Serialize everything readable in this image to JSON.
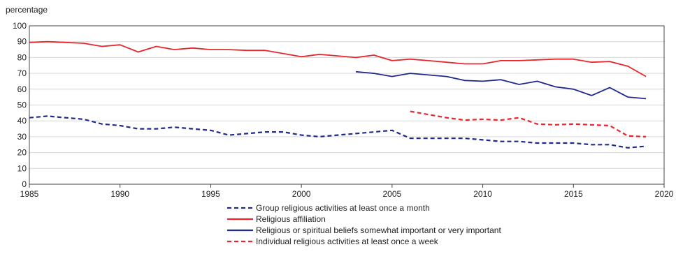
{
  "chart_data": {
    "type": "line",
    "ylabel": "percentage",
    "xlim": [
      1985,
      2020
    ],
    "ylim": [
      0,
      100
    ],
    "x_ticks": [
      "1985",
      "1990",
      "1995",
      "2000",
      "2005",
      "2010",
      "2015",
      "2020"
    ],
    "y_ticks": [
      "0",
      "10",
      "20",
      "30",
      "40",
      "50",
      "60",
      "70",
      "80",
      "90",
      "100"
    ],
    "grid": "horizontal",
    "legend_position": "bottom",
    "series": [
      {
        "name": "Group religious activities at least once a month",
        "color": "#1f2a8c",
        "dash": "dashed",
        "points": [
          [
            1985,
            42
          ],
          [
            1986,
            43
          ],
          [
            1987,
            42
          ],
          [
            1988,
            41
          ],
          [
            1989,
            38
          ],
          [
            1990,
            37
          ],
          [
            1991,
            35
          ],
          [
            1992,
            35
          ],
          [
            1993,
            36
          ],
          [
            1994,
            35
          ],
          [
            1995,
            34
          ],
          [
            1996,
            31
          ],
          [
            1997,
            32
          ],
          [
            1998,
            33
          ],
          [
            1999,
            33
          ],
          [
            2000,
            31
          ],
          [
            2001,
            30
          ],
          [
            2002,
            31
          ],
          [
            2003,
            32
          ],
          [
            2004,
            33
          ],
          [
            2005,
            34
          ],
          [
            2006,
            29
          ],
          [
            2007,
            29
          ],
          [
            2008,
            29
          ],
          [
            2009,
            29
          ],
          [
            2010,
            28
          ],
          [
            2011,
            27
          ],
          [
            2012,
            27
          ],
          [
            2013,
            26
          ],
          [
            2014,
            26
          ],
          [
            2015,
            26
          ],
          [
            2016,
            25
          ],
          [
            2017,
            25
          ],
          [
            2018,
            23
          ],
          [
            2019,
            24
          ]
        ]
      },
      {
        "name": "Religious affiliation",
        "color": "#e8262b",
        "dash": "solid",
        "points": [
          [
            1985,
            89.5
          ],
          [
            1986,
            90
          ],
          [
            1987,
            89.5
          ],
          [
            1988,
            89
          ],
          [
            1989,
            87
          ],
          [
            1990,
            88
          ],
          [
            1991,
            83.5
          ],
          [
            1992,
            87
          ],
          [
            1993,
            85
          ],
          [
            1994,
            86
          ],
          [
            1995,
            85
          ],
          [
            1996,
            85
          ],
          [
            1997,
            84.5
          ],
          [
            1998,
            84.5
          ],
          [
            1999,
            82.5
          ],
          [
            2000,
            80.5
          ],
          [
            2001,
            82
          ],
          [
            2002,
            81
          ],
          [
            2003,
            80
          ],
          [
            2004,
            81.5
          ],
          [
            2005,
            78
          ],
          [
            2006,
            79
          ],
          [
            2007,
            78
          ],
          [
            2008,
            77
          ],
          [
            2009,
            76
          ],
          [
            2010,
            76
          ],
          [
            2011,
            78
          ],
          [
            2012,
            78
          ],
          [
            2013,
            78.5
          ],
          [
            2014,
            79
          ],
          [
            2015,
            79
          ],
          [
            2016,
            77
          ],
          [
            2017,
            77.5
          ],
          [
            2018,
            74.5
          ],
          [
            2019,
            68
          ]
        ]
      },
      {
        "name": "Religious or spiritual beliefs somewhat important or very important",
        "color": "#1f2a8c",
        "dash": "solid",
        "points": [
          [
            2003,
            71
          ],
          [
            2004,
            70
          ],
          [
            2005,
            68
          ],
          [
            2006,
            70
          ],
          [
            2007,
            69
          ],
          [
            2008,
            68
          ],
          [
            2009,
            65.5
          ],
          [
            2010,
            65
          ],
          [
            2011,
            66
          ],
          [
            2012,
            63
          ],
          [
            2013,
            65
          ],
          [
            2014,
            61.5
          ],
          [
            2015,
            60
          ],
          [
            2016,
            56
          ],
          [
            2017,
            61
          ],
          [
            2018,
            55
          ],
          [
            2019,
            54
          ]
        ]
      },
      {
        "name": "Individual religious activities at least once a week",
        "color": "#e8262b",
        "dash": "dashed",
        "points": [
          [
            2006,
            46
          ],
          [
            2007,
            44
          ],
          [
            2008,
            42
          ],
          [
            2009,
            40.5
          ],
          [
            2010,
            41
          ],
          [
            2011,
            40.5
          ],
          [
            2012,
            42
          ],
          [
            2013,
            38
          ],
          [
            2014,
            37.5
          ],
          [
            2015,
            38
          ],
          [
            2016,
            37.5
          ],
          [
            2017,
            37
          ],
          [
            2018,
            30.5
          ],
          [
            2019,
            30
          ]
        ]
      }
    ]
  }
}
